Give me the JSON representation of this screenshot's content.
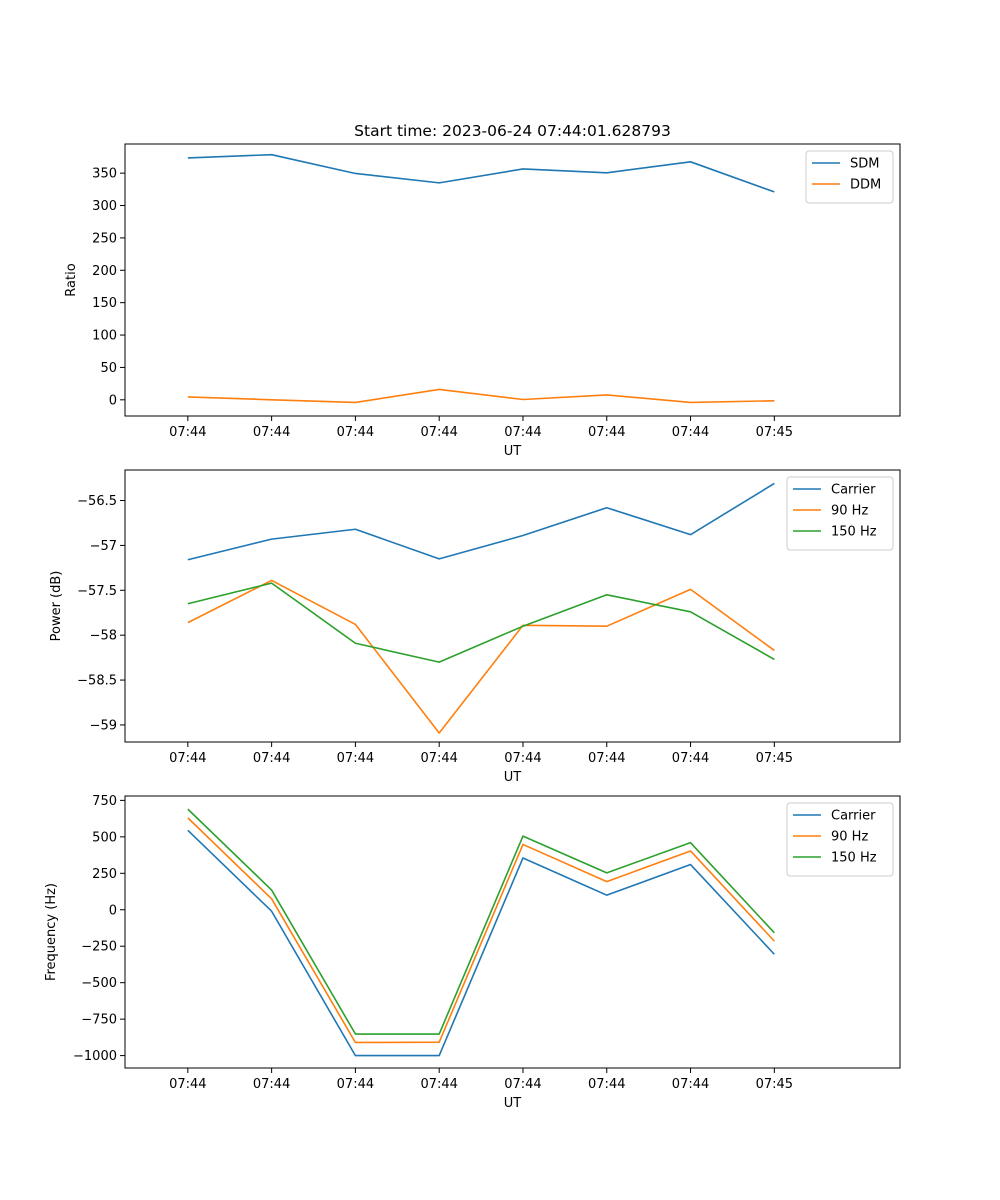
{
  "figure_title": "Start time: 2023-06-24 07:44:01.628793",
  "colors": {
    "blue": "#1f77b4",
    "orange": "#ff7f0e",
    "green": "#2ca02c"
  },
  "chart_data": [
    {
      "type": "line",
      "title": "Start time: 2023-06-24 07:44:01.628793",
      "xlabel": "UT",
      "ylabel": "Ratio",
      "x_tick_labels": [
        "07:44",
        "07:44",
        "07:44",
        "07:44",
        "07:44",
        "07:44",
        "07:44",
        "07:45"
      ],
      "xlim": [
        -0.75,
        8.5
      ],
      "ylim": [
        -25,
        395
      ],
      "y_ticks": [
        0,
        50,
        100,
        150,
        200,
        250,
        300,
        350
      ],
      "grid": false,
      "legend_position": "upper right",
      "x": [
        0,
        1,
        2,
        3,
        4,
        5,
        6,
        7
      ],
      "series": [
        {
          "name": "SDM",
          "color": "#1f77b4",
          "values": [
            373.5,
            378.5,
            349.5,
            335,
            356.5,
            350.5,
            367.5,
            321
          ]
        },
        {
          "name": "DDM",
          "color": "#ff7f0e",
          "values": [
            4.5,
            0,
            -4,
            16,
            0.5,
            7.5,
            -4,
            -1.5
          ]
        }
      ]
    },
    {
      "type": "line",
      "title": "",
      "xlabel": "UT",
      "ylabel": "Power (dB)",
      "x_tick_labels": [
        "07:44",
        "07:44",
        "07:44",
        "07:44",
        "07:44",
        "07:44",
        "07:44",
        "07:45"
      ],
      "xlim": [
        -0.75,
        8.5
      ],
      "ylim": [
        -59.19,
        -56.16
      ],
      "y_ticks": [
        -59.0,
        -58.5,
        -58.0,
        -57.5,
        -57.0,
        -56.5
      ],
      "grid": false,
      "legend_position": "upper right",
      "x": [
        0,
        1,
        2,
        3,
        4,
        5,
        6,
        7
      ],
      "series": [
        {
          "name": "Carrier",
          "color": "#1f77b4",
          "values": [
            -57.16,
            -56.93,
            -56.82,
            -57.15,
            -56.89,
            -56.58,
            -56.88,
            -56.31
          ]
        },
        {
          "name": "90 Hz",
          "color": "#ff7f0e",
          "values": [
            -57.86,
            -57.39,
            -57.88,
            -59.09,
            -57.89,
            -57.9,
            -57.49,
            -58.17
          ]
        },
        {
          "name": "150 Hz",
          "color": "#2ca02c",
          "values": [
            -57.65,
            -57.42,
            -58.09,
            -58.3,
            -57.9,
            -57.55,
            -57.74,
            -58.27
          ]
        }
      ]
    },
    {
      "type": "line",
      "title": "",
      "xlabel": "UT",
      "ylabel": "Frequency (Hz)",
      "x_tick_labels": [
        "07:44",
        "07:44",
        "07:44",
        "07:44",
        "07:44",
        "07:44",
        "07:44",
        "07:45"
      ],
      "xlim": [
        -0.75,
        8.5
      ],
      "ylim": [
        -1085,
        780
      ],
      "y_ticks": [
        -1000,
        -750,
        -500,
        -250,
        0,
        250,
        500,
        750
      ],
      "grid": false,
      "legend_position": "upper right",
      "x": [
        0,
        1,
        2,
        3,
        4,
        5,
        6,
        7
      ],
      "series": [
        {
          "name": "Carrier",
          "color": "#1f77b4",
          "values": [
            545,
            -10,
            -1000,
            -1000,
            355,
            100,
            310,
            -305
          ]
        },
        {
          "name": "90 Hz",
          "color": "#ff7f0e",
          "values": [
            630,
            75,
            -910,
            -908,
            448,
            193,
            403,
            -215
          ]
        },
        {
          "name": "150 Hz",
          "color": "#2ca02c",
          "values": [
            690,
            135,
            -852,
            -852,
            505,
            253,
            460,
            -158
          ]
        }
      ]
    }
  ]
}
